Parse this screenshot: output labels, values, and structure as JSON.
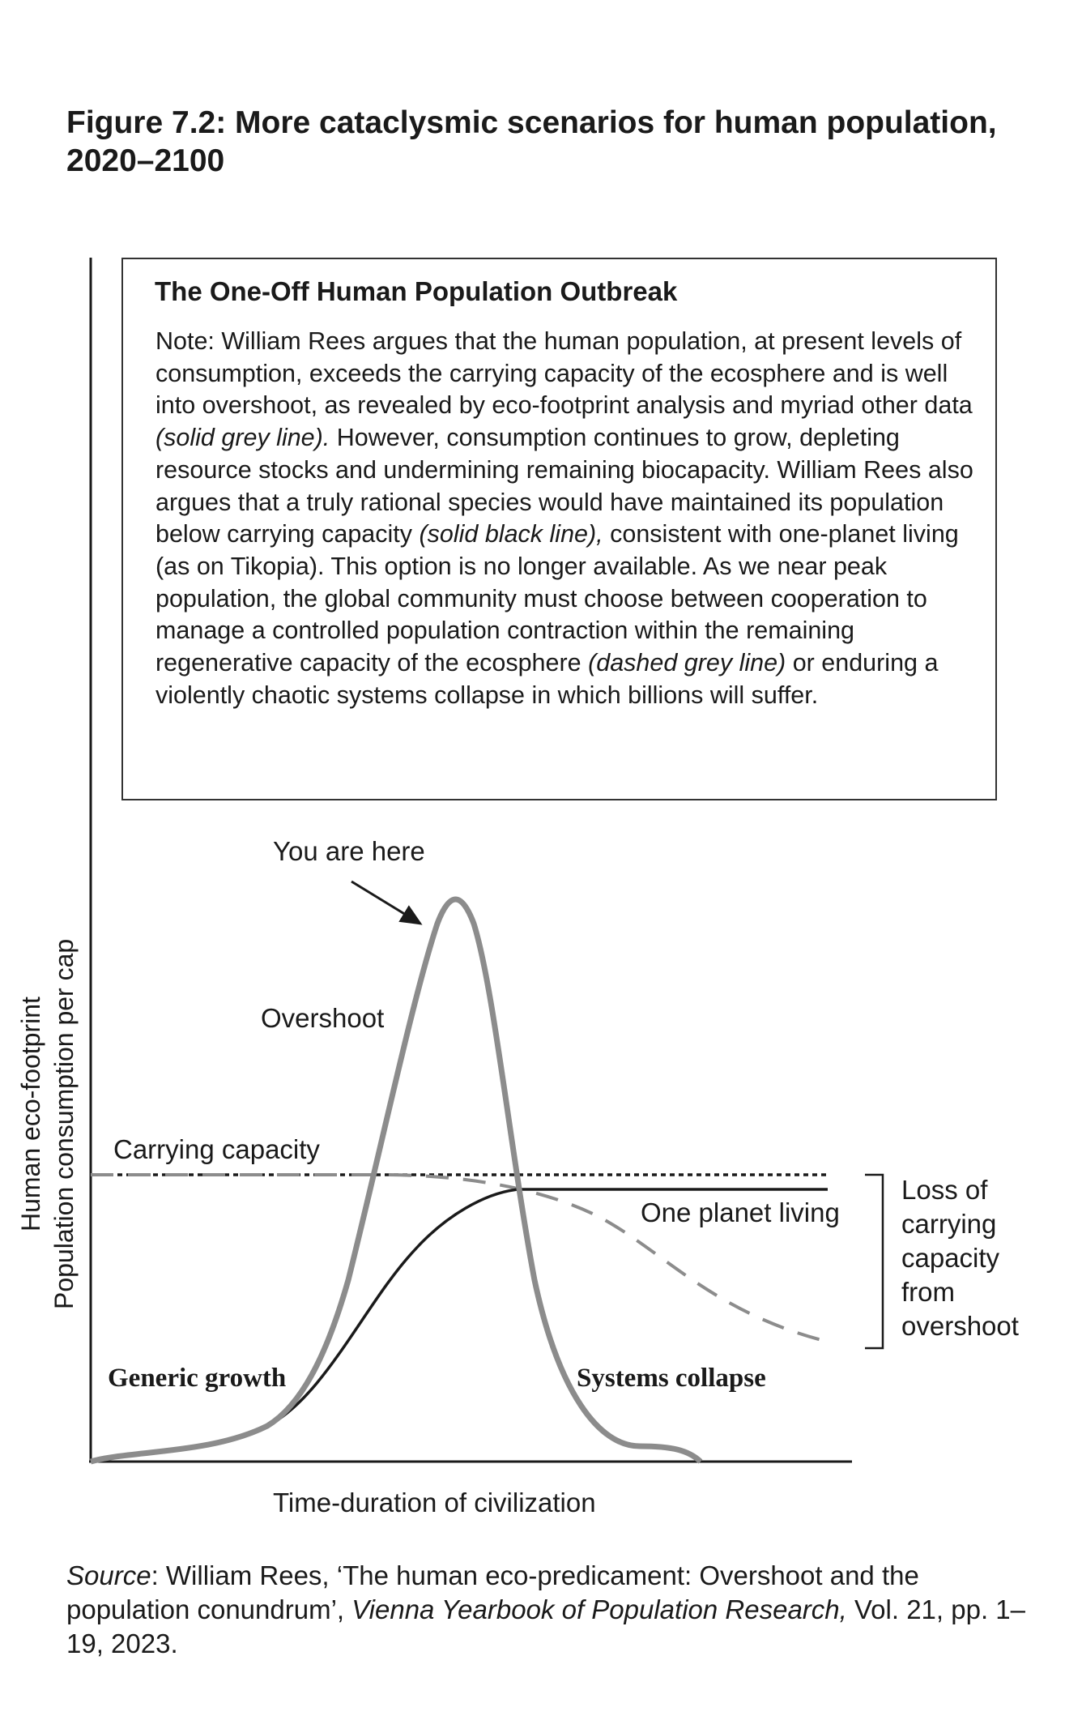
{
  "figure_title": "Figure 7.2:  More cataclysmic scenarios for human population, 2020–2100",
  "note": {
    "heading": "The One-Off Human Population Outbreak",
    "parts": [
      "Note: William Rees argues that the human population, at present levels of consumption, exceeds the carrying capacity of the ecosphere and is well into overshoot, as revealed by eco-footprint analysis and myriad other data ",
      "(solid grey line).",
      " However, consumption continues to grow, depleting resource stocks and undermining remaining biocapacity. William Rees also argues that a truly rational species would have maintained its population below carrying capacity ",
      "(solid black line),",
      " consistent with one-planet living (as on Tikopia). This option is no longer available. As we near peak population, the global community must choose between cooperation to manage a controlled population contraction within the remaining regenerative capacity of the ecosphere ",
      "(dashed grey line)",
      " or enduring a violently chaotic systems collapse in which billions will suffer."
    ]
  },
  "chart_data": {
    "type": "line",
    "title": "",
    "xlabel": "Time-duration of civilization",
    "ylabel": [
      "Human eco-footprint",
      "Population consumption per cap"
    ],
    "axis_ticks": "none",
    "series": [
      {
        "name": "Overshoot (solid grey line)",
        "style": "solid",
        "color": "#8c8c8c"
      },
      {
        "name": "One planet living (solid black line)",
        "style": "solid",
        "color": "#1a1a1a"
      },
      {
        "name": "Carrying capacity",
        "style": "dotted",
        "color": "#1a1a1a"
      },
      {
        "name": "Controlled contraction (dashed grey line)",
        "style": "dashed",
        "color": "#8c8c8c"
      }
    ],
    "annotations": {
      "you_are_here": "You are here",
      "overshoot": "Overshoot",
      "carrying_capacity": "Carrying capacity",
      "one_planet_living": "One planet living",
      "generic_growth": "Generic growth",
      "systems_collapse": "Systems collapse",
      "loss_of_capacity": [
        "Loss of",
        "carrying",
        "capacity",
        "from",
        "overshoot"
      ]
    }
  },
  "source": {
    "label": "Source",
    "text1": ": William Rees, ‘The human eco-predicament: Overshoot and the population conundrum’, ",
    "journal": "Vienna Yearbook of Population Research,",
    "text2": " Vol. 21, pp. 1–19, 2023."
  }
}
